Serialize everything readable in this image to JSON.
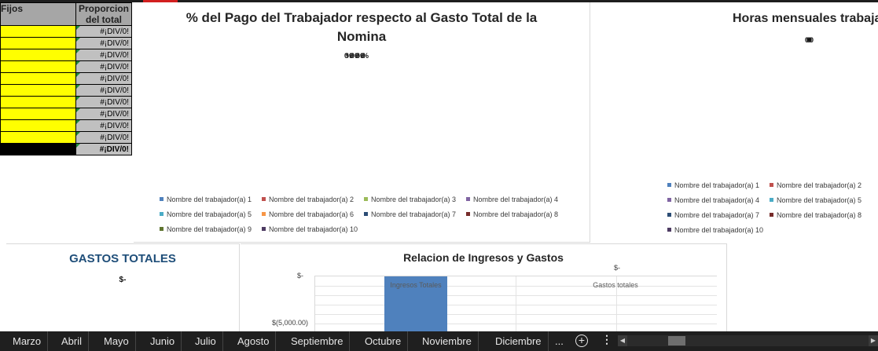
{
  "table": {
    "header_col1": "Fijos",
    "header_col2": "Proporcion del total",
    "rows": [
      "#¡DIV/0!",
      "#¡DIV/0!",
      "#¡DIV/0!",
      "#¡DIV/0!",
      "#¡DIV/0!",
      "#¡DIV/0!",
      "#¡DIV/0!",
      "#¡DIV/0!",
      "#¡DIV/0!",
      "#¡DIV/0!"
    ],
    "total": "#¡DIV/0!"
  },
  "chart1": {
    "title": "% del Pago del Trabajador respecto al Gasto Total de la Nomina",
    "overlap_label": "0%0%0%0%",
    "legend": [
      "Nombre del trabajador(a) 1",
      "Nombre del trabajador(a) 2",
      "Nombre del trabajador(a) 3",
      "Nombre del trabajador(a) 4",
      "Nombre del trabajador(a) 5",
      "Nombre del trabajador(a) 6",
      "Nombre del trabajador(a) 7",
      "Nombre del trabajador(a) 8",
      "Nombre del trabajador(a) 9",
      "Nombre del trabajador(a) 10"
    ]
  },
  "chart2": {
    "title": "Horas mensuales trabaja",
    "overlap_label": "0000",
    "legend": [
      "Nombre del trabajador(a) 1",
      "Nombre del trabajador(a) 2",
      "Nombre del trabajador(a) 4",
      "Nombre del trabajador(a) 5",
      "Nombre del trabajador(a) 7",
      "Nombre del trabajador(a) 8",
      "Nombre del trabajador(a) 10"
    ]
  },
  "series_colors": [
    "#4f81bd",
    "#c0504d",
    "#9bbb59",
    "#8064a2",
    "#4bacc6",
    "#f79646",
    "#2c4d75",
    "#772c2a",
    "#5f7530",
    "#4d3b62"
  ],
  "gastos": {
    "title": "GASTOS TOTALES",
    "value": "$-"
  },
  "relacion": {
    "title": "Relacion de Ingresos y Gastos",
    "ytick_top": "$-",
    "ytick_bottom": "$(5,000.00)",
    "data_label_top": "$-",
    "cat1": "Ingresos Totales",
    "cat2": "Gastos totales"
  },
  "chart_data": {
    "type": "bar",
    "title": "Relacion de Ingresos y Gastos",
    "categories": [
      "Ingresos Totales",
      "Gastos totales"
    ],
    "values": [
      null,
      0
    ],
    "ytick_labels": [
      "$-",
      "$(5,000.00)"
    ],
    "grid": true
  },
  "tabs": [
    "Marzo",
    "Abril",
    "Mayo",
    "Junio",
    "Julio",
    "Agosto",
    "Septiembre",
    "Octubre",
    "Noviembre",
    "Diciembre",
    "..."
  ],
  "controls": {
    "add_icon": "plus-circle-icon",
    "more_icon": "vertical-ellipsis-icon"
  }
}
